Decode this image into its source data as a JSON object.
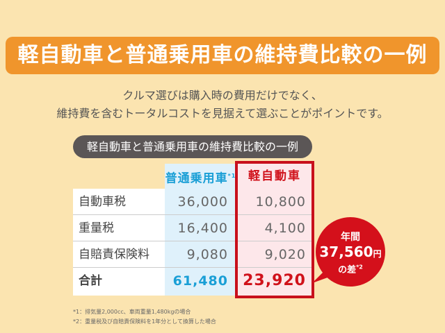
{
  "title": "軽自動車と普通乗用車の維持費比較の一例",
  "lead": [
    "クルマ選びは購入時の費用だけでなく、",
    "維持費を含むトータルコストを見据えて選ぶことがポイントです。"
  ],
  "table": {
    "caption": "軽自動車と普通乗用車の維持費比較の一例",
    "headers": {
      "regular": "普通乗用車",
      "regular_note": "*1",
      "kei": "軽自動車"
    },
    "rows": [
      {
        "label": "自動車税",
        "regular": "36,000",
        "kei": "10,800"
      },
      {
        "label": "重量税",
        "regular": "16,400",
        "kei": "4,100"
      },
      {
        "label": "自賠責保険料",
        "regular": "9,080",
        "kei": "9,020"
      },
      {
        "label": "合計",
        "regular": "61,480",
        "kei": "23,920"
      }
    ]
  },
  "bubble": {
    "line1": "年間",
    "amount": "37,560",
    "unit": "円",
    "line3": "の差",
    "note": "*2"
  },
  "notes": [
    "*1：排気量2,000cc、車両重量1,480kgの場合",
    "*2：重量税及び自賠責保険料を1年分として換算した場合"
  ],
  "colors": {
    "orange": "#f0952c",
    "red": "#d0121b",
    "blue": "#1a9fd6",
    "background": "#fbe4b0"
  }
}
